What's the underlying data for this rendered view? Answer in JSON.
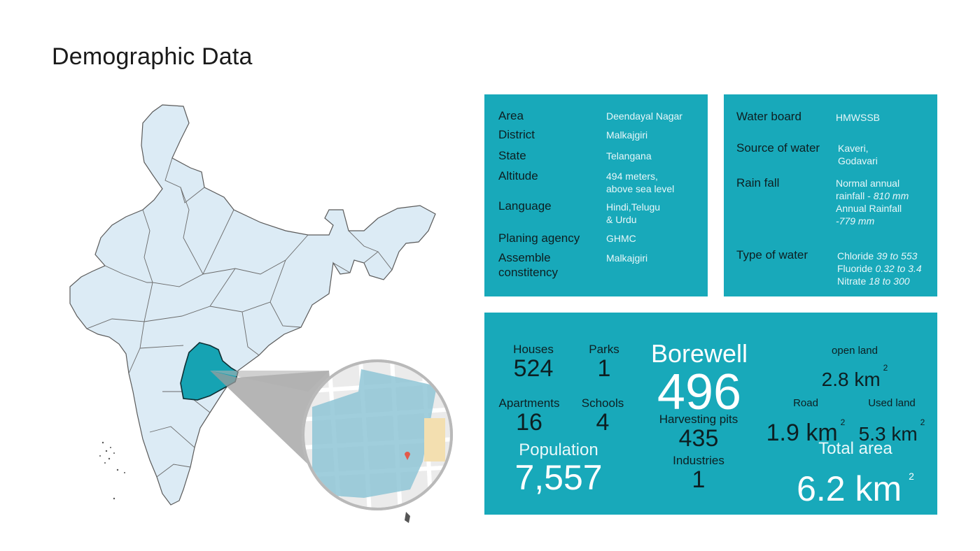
{
  "page": {
    "title": "Demographic Data"
  },
  "colors": {
    "panel": "#18a9ba",
    "map_fill": "#dcebf5",
    "map_border": "#5a5a5a",
    "highlight_state": "#16a3b3",
    "zoom_overlay": "#8fc6d6"
  },
  "info": [
    {
      "label": "Area",
      "value": "Deendayal Nagar"
    },
    {
      "label": "District",
      "value": "Malkajgiri"
    },
    {
      "label": "State",
      "value": "Telangana"
    },
    {
      "label": "Altitude",
      "value_lines": [
        "494 meters,",
        "above sea level"
      ]
    },
    {
      "label": "Language",
      "value_lines": [
        "Hindi,Telugu",
        "& Urdu"
      ]
    },
    {
      "label": "Planing agency",
      "value": "GHMC"
    },
    {
      "label_lines": [
        "Assemble",
        "constitency"
      ],
      "value": "Malkajgiri"
    }
  ],
  "water": {
    "board_label": "Water board",
    "board_value": "HMWSSB",
    "source_label": "Source of water",
    "source_lines": [
      "Kaveri,",
      "Godavari"
    ],
    "rain_label": "Rain fall",
    "rain_line1": "Normal annual",
    "rain_line2_text": "rainfall - ",
    "rain_line2_value": "810 mm",
    "rain_line3": "Annual Rainfall",
    "rain_line4_value": "-779 mm",
    "type_label": "Type of water",
    "chloride_name": "Chloride ",
    "chloride_value": "39 to 553",
    "fluoride_name": "Fluoride ",
    "fluoride_value": "0.32 to 3.4",
    "nitrate_name": "Nitrate ",
    "nitrate_value": "18 to 300"
  },
  "stats": {
    "houses": {
      "label": "Houses",
      "value": "524"
    },
    "parks": {
      "label": "Parks",
      "value": "1"
    },
    "apartments": {
      "label": "Apartments",
      "value": "16"
    },
    "schools": {
      "label": "Schools",
      "value": "4"
    },
    "population": {
      "label": "Population",
      "value": "7,557"
    },
    "borewell": {
      "label": "Borewell",
      "value": "496"
    },
    "harvesting": {
      "label": "Harvesting pits",
      "value": "435"
    },
    "industries": {
      "label": "Industries",
      "value": "1"
    },
    "open_land": {
      "label": "open land",
      "value": "2.8 km",
      "unit_power": "2"
    },
    "road": {
      "label": "Road",
      "value": "1.9 km",
      "unit_power": "2"
    },
    "used_land": {
      "label": "Used land",
      "value": "5.3 km",
      "unit_power": "2"
    },
    "total_area": {
      "label": "Total area",
      "value": "6.2 km",
      "unit_power": "2"
    }
  }
}
